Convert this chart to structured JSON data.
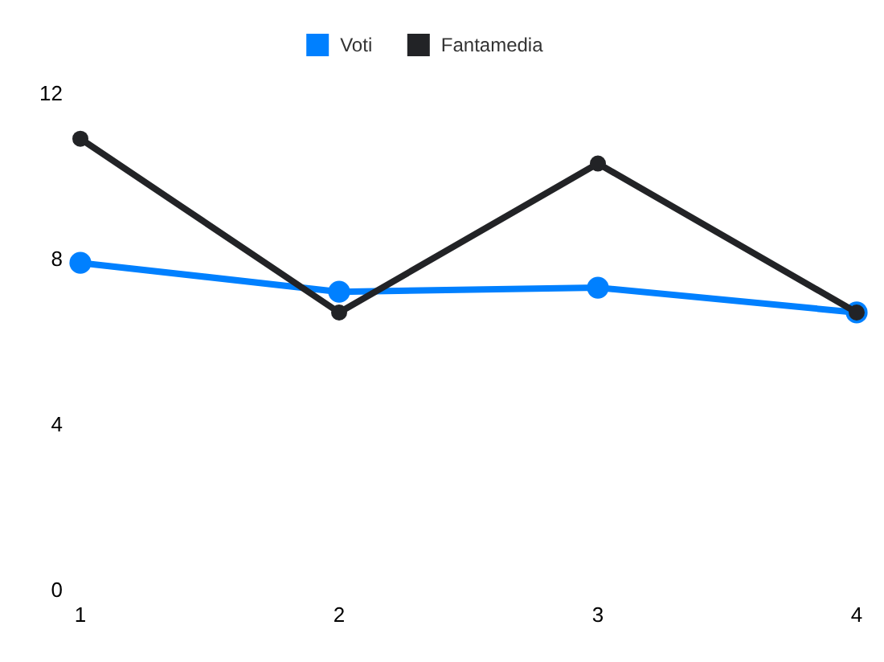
{
  "chart_data": {
    "type": "line",
    "x": [
      1,
      2,
      3,
      4
    ],
    "xlim": [
      1,
      4
    ],
    "xticks": [
      1,
      2,
      3,
      4
    ],
    "ylim": [
      0,
      12
    ],
    "yticks": [
      0,
      4,
      8,
      12
    ],
    "grid": false,
    "legend": "top",
    "marker": "circle",
    "line_style": "solid",
    "series": [
      {
        "name": "Voti",
        "color": "#0080ff",
        "values": [
          7.9,
          7.2,
          7.3,
          6.7
        ]
      },
      {
        "name": "Fantamedia",
        "color": "#222326",
        "values": [
          10.9,
          6.7,
          10.3,
          6.7
        ]
      }
    ]
  }
}
